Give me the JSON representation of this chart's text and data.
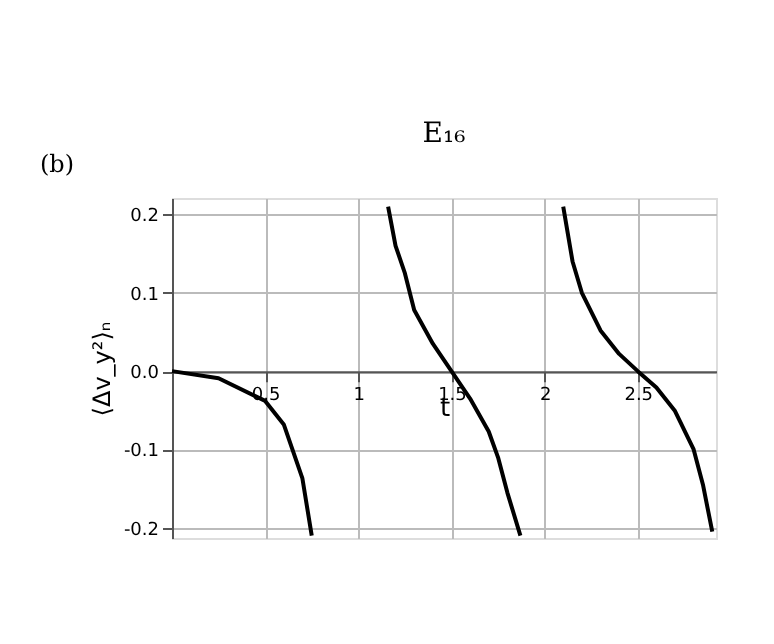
{
  "chart_data": {
    "type": "line",
    "title": "E₁₆",
    "xlabel": "t",
    "ylabel": "⟨Δv_y²⟩ₙ",
    "annotations": [
      "(b)"
    ],
    "series": [
      {
        "color": "#000000",
        "x": [
          0,
          0.25,
          0.5,
          0.6,
          0.7,
          0.75
        ],
        "values": [
          0,
          -0.009,
          -0.038,
          -0.068,
          -0.137,
          -0.21
        ]
      },
      {
        "color": "#000000",
        "x": [
          1.16,
          1.2,
          1.25,
          1.3,
          1.4,
          1.5,
          1.6,
          1.7,
          1.75,
          1.8,
          1.87
        ],
        "values": [
          0.21,
          0.16,
          0.125,
          0.078,
          0.035,
          0,
          -0.035,
          -0.077,
          -0.11,
          -0.155,
          -0.21
        ]
      },
      {
        "color": "#000000",
        "x": [
          2.1,
          2.15,
          2.2,
          2.3,
          2.4,
          2.5,
          2.6,
          2.7,
          2.8,
          2.85,
          2.9
        ],
        "values": [
          0.21,
          0.14,
          0.1,
          0.052,
          0.022,
          0,
          -0.021,
          -0.051,
          -0.1,
          -0.145,
          -0.205
        ]
      }
    ],
    "xlim": [
      0,
      2.92
    ],
    "ylim": [
      -0.213,
      0.221
    ],
    "xticks": [
      0.5,
      1,
      1.5,
      2,
      2.5
    ],
    "yticks": [
      -0.2,
      -0.1,
      {
        "value": 0,
        "label": "0.0"
      },
      0.1,
      0.2
    ],
    "grid": true,
    "marker": "none",
    "line_style": "solid"
  }
}
